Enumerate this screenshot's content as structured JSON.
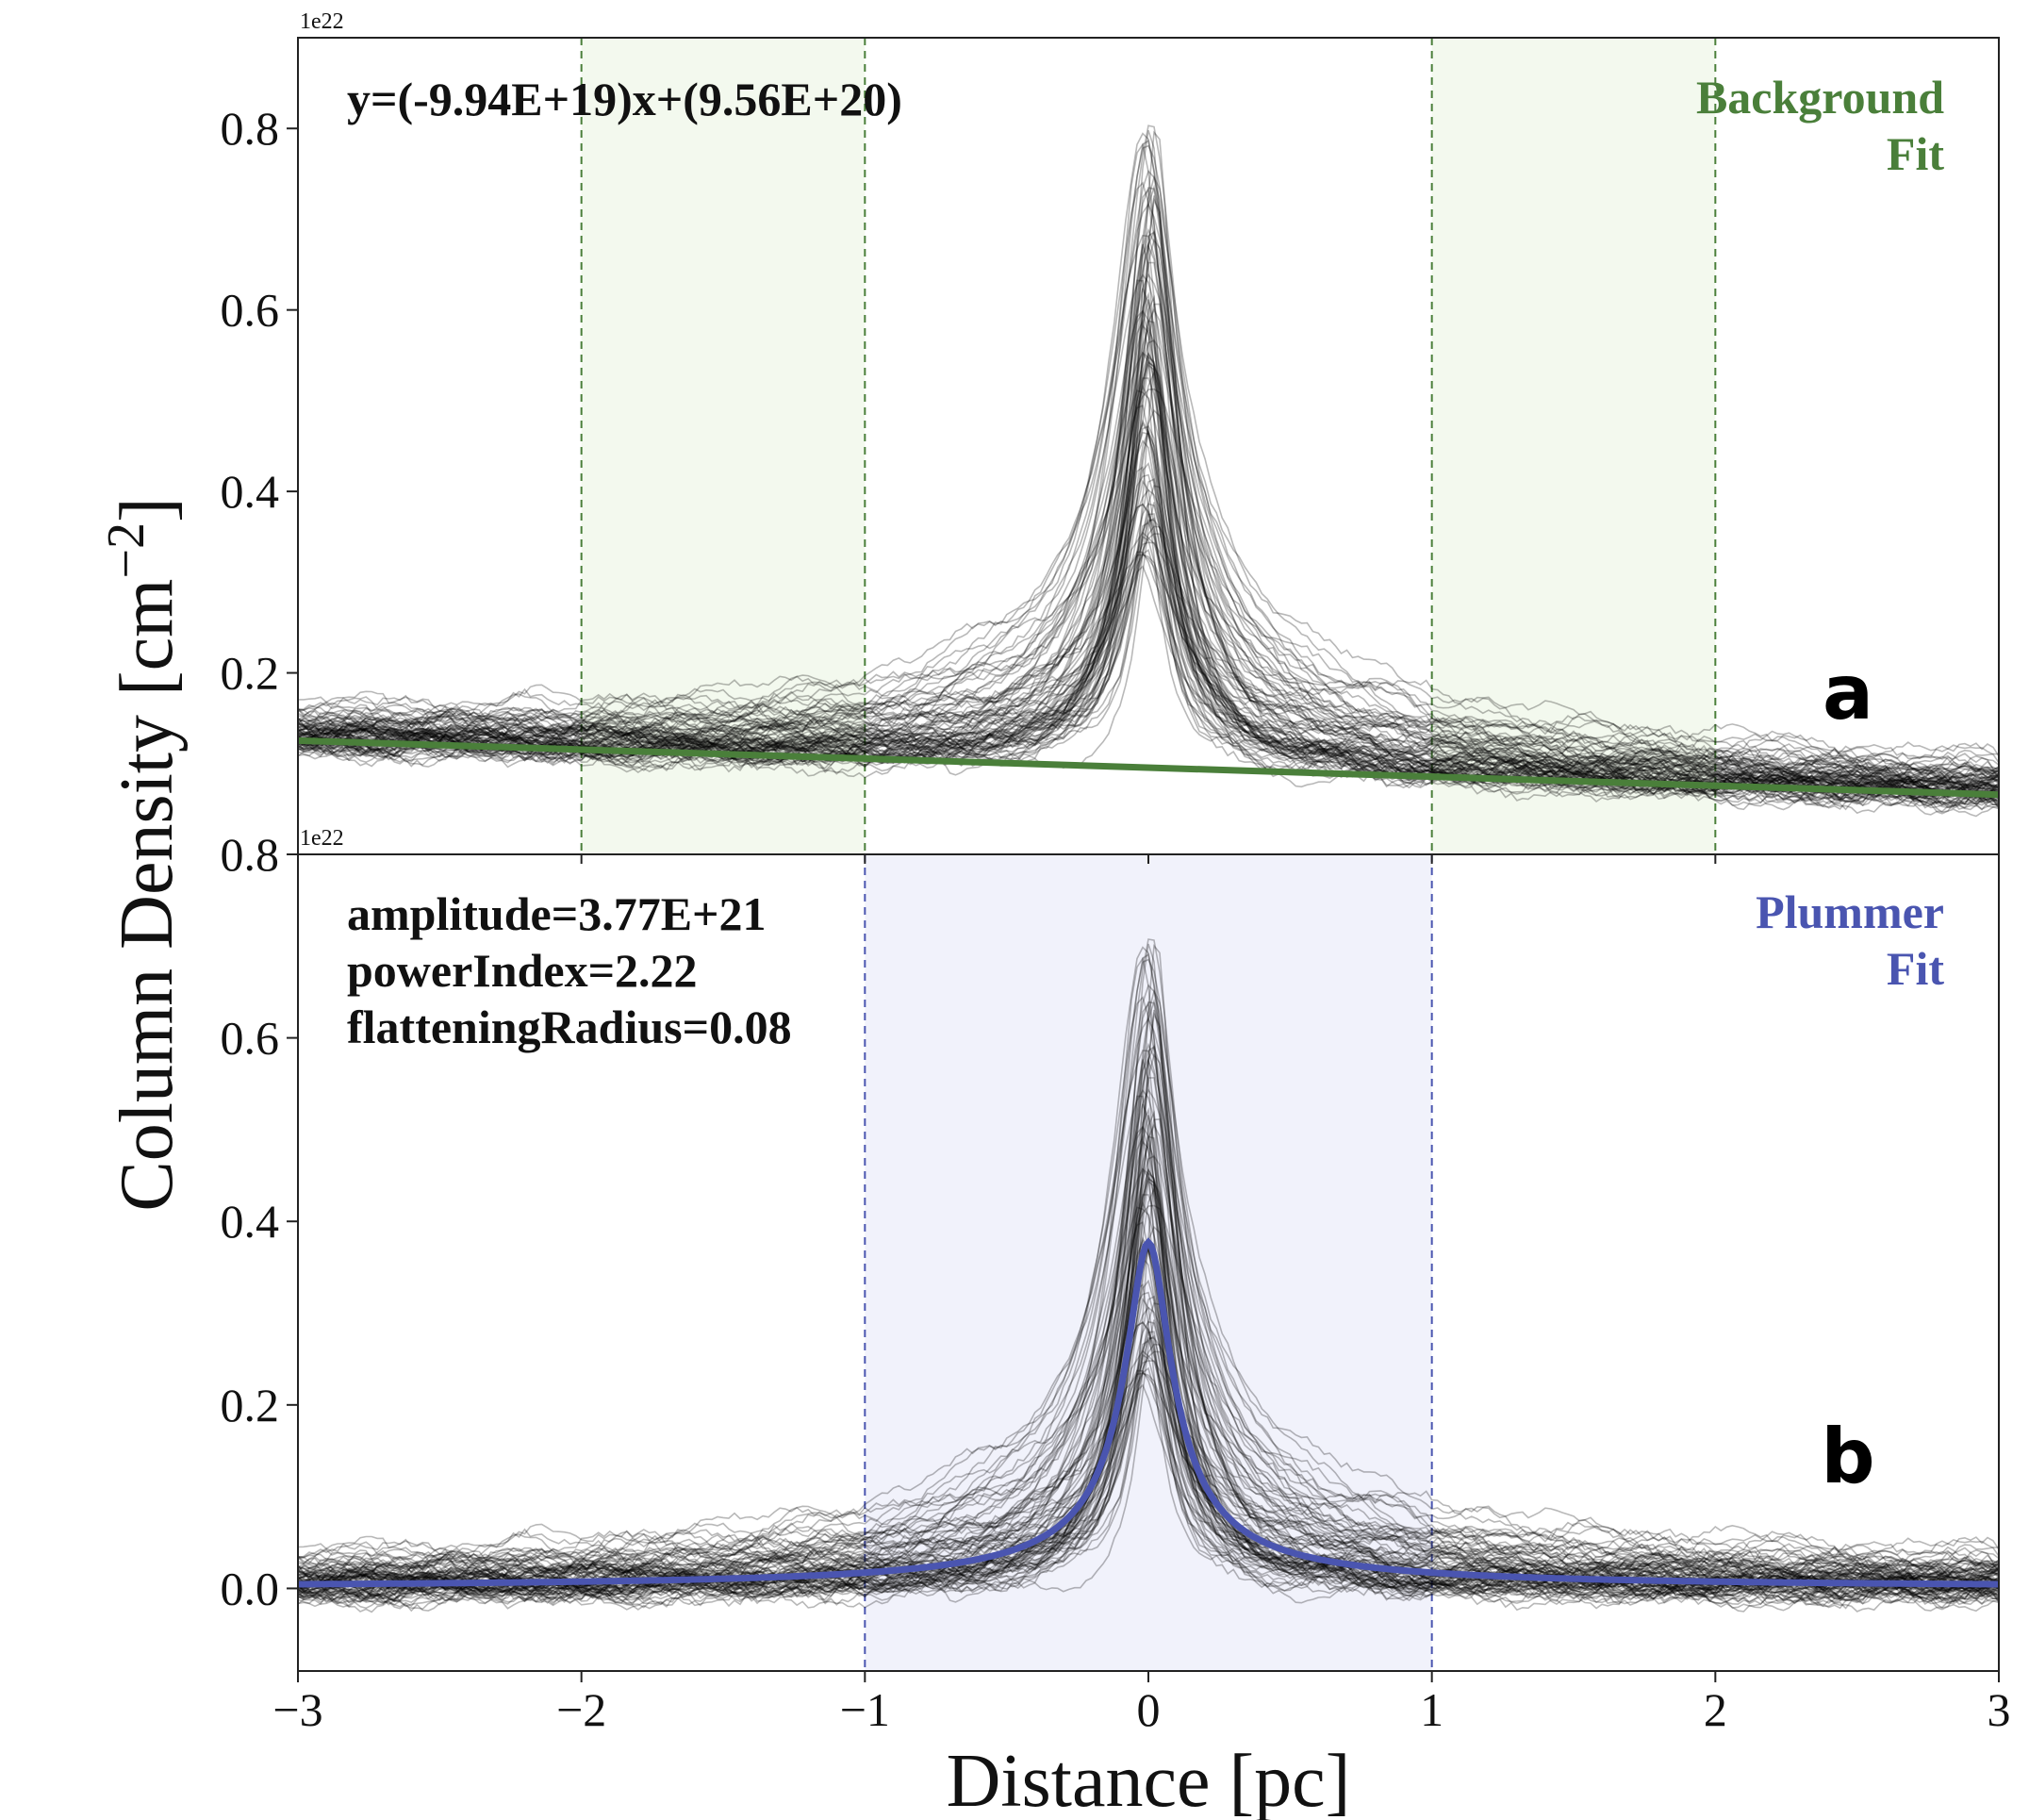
{
  "chart_data": [
    {
      "panel": "a",
      "type": "line",
      "xlim": [
        -3,
        3
      ],
      "ylim": [
        0,
        0.9
      ],
      "y_scale_exponent": "1e22",
      "xticks": [
        "−3",
        "−2",
        "−1",
        "0",
        "1",
        "2",
        "3"
      ],
      "yticks": [
        "0.2",
        "0.4",
        "0.6",
        "0.8"
      ],
      "ytick_values": [
        0.2,
        0.4,
        0.6,
        0.8
      ],
      "fit_label_line1": "Background",
      "fit_label_line2": "Fit",
      "fit_color": "#4a7f3a",
      "equation": "y=(-9.94E+19)x+(9.56E+20)",
      "fit_line": {
        "slope": -0.00994,
        "intercept": 0.0956
      },
      "shaded_regions": [
        [
          -2,
          -1
        ],
        [
          1,
          2
        ]
      ],
      "shade_color": "#f3f9ee",
      "profile_color": "#000000",
      "panel_letter": "a"
    },
    {
      "panel": "b",
      "type": "line",
      "xlim": [
        -3,
        3
      ],
      "ylim": [
        -0.09,
        0.8
      ],
      "y_scale_exponent": "1e22",
      "xticks": [
        "−3",
        "−2",
        "−1",
        "0",
        "1",
        "2",
        "3"
      ],
      "xtick_values": [
        -3,
        -2,
        -1,
        0,
        1,
        2,
        3
      ],
      "yticks": [
        "0.0",
        "0.2",
        "0.4",
        "0.6",
        "0.8"
      ],
      "ytick_values": [
        0.0,
        0.2,
        0.4,
        0.6,
        0.8
      ],
      "fit_label_line1": "Plummer",
      "fit_label_line2": "Fit",
      "fit_color": "#4a55b0",
      "params": [
        "amplitude=3.77E+21",
        "powerIndex=2.22",
        "flatteningRadius=0.08"
      ],
      "plummer": {
        "amplitude": 0.377,
        "powerIndex": 2.22,
        "flatteningRadius": 0.08
      },
      "shaded_regions": [
        [
          -1,
          1
        ]
      ],
      "shade_color": "#f1f2fb",
      "profile_color": "#000000",
      "panel_letter": "b"
    }
  ],
  "xlabel": "Distance [pc]",
  "ylabel": "Column Density [cm",
  "ylabel_exponent": "−2",
  "ylabel_close": "]"
}
